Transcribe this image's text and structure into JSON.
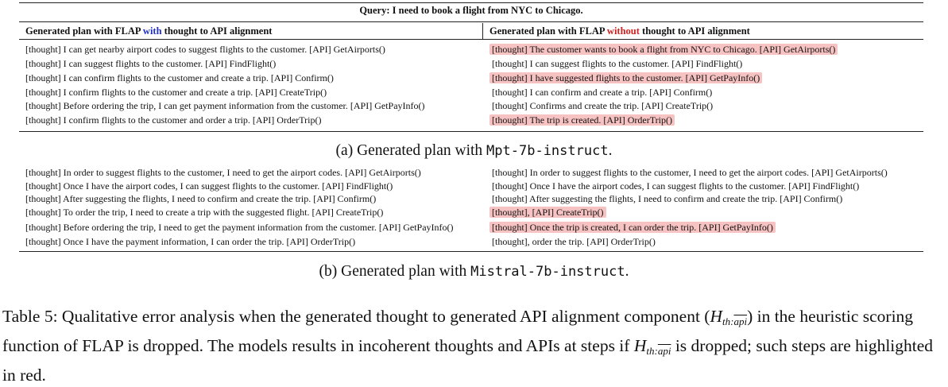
{
  "query": "Query: I need to book a flight from NYC to Chicago.",
  "header_left": {
    "pre": "Generated plan with FLAP ",
    "kw": "with",
    "post": " thought to API alignment"
  },
  "header_right": {
    "pre": "Generated plan with FLAP ",
    "kw": "without",
    "post": " thought to API alignment"
  },
  "colors": {
    "with": "#2030c8",
    "without": "#d02020",
    "highlight": "#f6c2c2"
  },
  "table_a": {
    "left": [
      "[thought] I can get nearby airport codes to suggest flights to the customer. [API] GetAirports()",
      "[thought] I can suggest flights to the customer. [API] FindFlight()",
      "[thought] I can confirm flights to the customer and create a trip. [API] Confirm()",
      "[thought] I confirm flights to the customer and create a trip. [API] CreateTrip()",
      "[thought] Before ordering the trip, I can get payment information from the customer. [API] GetPayInfo()",
      "[thought] I confirm flights to the customer and order a trip. [API] OrderTrip()"
    ],
    "right": [
      {
        "text": "[thought] The customer wants to book a flight from NYC to Chicago. [API] GetAirports()",
        "highlight": true
      },
      {
        "text": "[thought] I can suggest flights to the customer. [API] FindFlight()",
        "highlight": false
      },
      {
        "text": "[thought] I have suggested flights to the customer. [API] GetPayInfo()",
        "highlight": true
      },
      {
        "text": "[thought] I can confirm and create a trip. [API] Confirm()",
        "highlight": false
      },
      {
        "text": "[thought] Confirms and create the trip. [API] CreateTrip()",
        "highlight": false
      },
      {
        "text": "[thought] The trip is created. [API] OrderTrip()",
        "highlight": true
      }
    ],
    "caption_pre": "(a) Generated plan with ",
    "caption_model": "Mpt-7b-instruct",
    "caption_post": "."
  },
  "table_b": {
    "left": [
      "[thought] In order to suggest flights to the customer, I need to get the airport codes. [API] GetAirports()",
      "[thought] Once I have the airport codes, I can suggest flights to the customer. [API] FindFlight()",
      "[thought] After suggesting the flights, I need to confirm and create the trip. [API] Confirm()",
      "[thought] To order the trip, I need to create a trip with the suggested flight. [API] CreateTrip()",
      "[thought] Before ordering the trip, I need to get the payment information from the customer. [API] GetPayInfo()",
      "[thought] Once I have the payment information, I can order the trip. [API] OrderTrip()"
    ],
    "right": [
      {
        "text": "[thought] In order to suggest flights to the customer, I need to get the airport codes. [API] GetAirports()",
        "highlight": false
      },
      {
        "text": "[thought] Once I have the airport codes, I can suggest flights to the customer. [API] FindFlight()",
        "highlight": false
      },
      {
        "text": "[thought] After suggesting the flights, I need to confirm and create the trip. [API] Confirm()",
        "highlight": false
      },
      {
        "text": "[thought], [API] CreateTrip()",
        "highlight": true
      },
      {
        "text": "[thought] Once the trip is created, I can order the trip. [API] GetPayInfo()",
        "highlight": true
      },
      {
        "text": "[thought], order the trip. [API] OrderTrip()",
        "highlight": false
      }
    ],
    "caption_pre": "(b) Generated plan with ",
    "caption_model": "Mistral-7b-instruct",
    "caption_post": "."
  },
  "table_caption": {
    "part1": "Table 5: Qualitative error analysis when the generated thought to generated API alignment component (",
    "math_H": "H",
    "math_sub_th": "th:",
    "math_sub_api": "api",
    "part2": ") in the heuristic scoring function of FLAP is dropped. The models results in incoherent thoughts and APIs at steps if ",
    "part3": " is dropped; such steps are highlighted in red."
  }
}
